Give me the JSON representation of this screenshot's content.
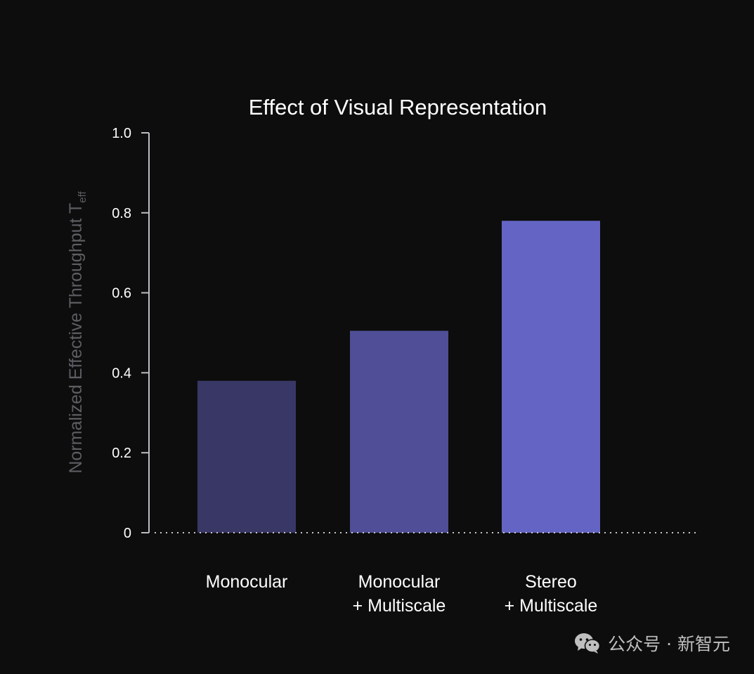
{
  "chart_data": {
    "type": "bar",
    "title": "Effect of Visual Representation",
    "ylabel": "Normalized Effective Throughput T",
    "ylabel_subscript": "eff",
    "xlabel": "",
    "ylim": [
      0,
      1.0
    ],
    "yticks": [
      "0",
      "0.2",
      "0.4",
      "0.6",
      "0.8",
      "1.0"
    ],
    "categories": [
      [
        "Monocular"
      ],
      [
        "Monocular",
        "+ Multiscale"
      ],
      [
        "Stereo",
        "+ Multiscale"
      ]
    ],
    "values": [
      0.38,
      0.505,
      0.78
    ],
    "colors": [
      "#383766",
      "#4f4e96",
      "#6464c4"
    ],
    "grid": false,
    "baseline_style": "dotted"
  },
  "watermark": {
    "icon": "wechat-icon",
    "text": "公众号 · 新智元"
  }
}
